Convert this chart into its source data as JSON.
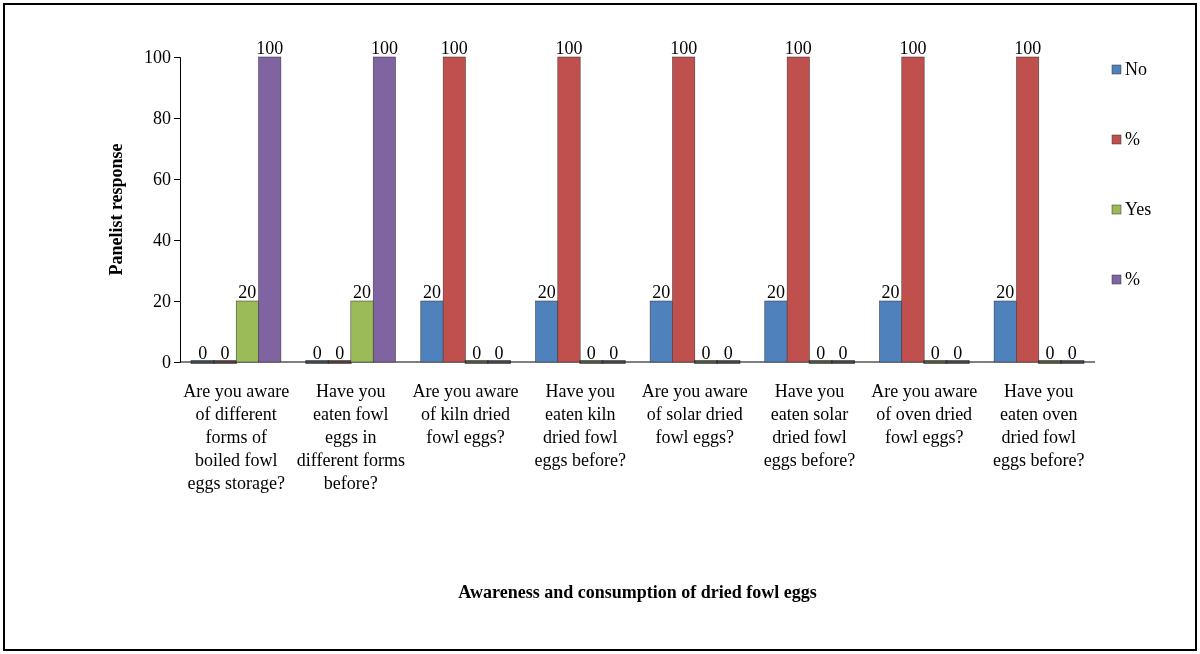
{
  "chart_data": {
    "type": "bar",
    "xlabel": "Awareness and consumption of dried fowl eggs",
    "ylabel": "Panelist response",
    "categories": [
      "Are you aware of different forms of boiled fowl eggs storage?",
      "Have you eaten fowl eggs in different forms before?",
      "Are you aware of kiln dried fowl eggs?",
      "Have you eaten kiln dried fowl eggs before?",
      "Are you aware of solar dried fowl eggs?",
      "Have you eaten solar dried fowl eggs before?",
      "Are you aware of oven dried fowl eggs?",
      "Have you eaten oven dried fowl eggs before?"
    ],
    "series": [
      {
        "name": "No",
        "color": "#4f81bd",
        "values": [
          0,
          0,
          20,
          20,
          20,
          20,
          20,
          20
        ]
      },
      {
        "name": "%",
        "color": "#c0504d",
        "values": [
          0,
          0,
          100,
          100,
          100,
          100,
          100,
          100
        ]
      },
      {
        "name": "Yes",
        "color": "#9bbb59",
        "values": [
          20,
          20,
          0,
          0,
          0,
          0,
          0,
          0
        ]
      },
      {
        "name": "%",
        "color": "#8064a2",
        "values": [
          100,
          100,
          0,
          0,
          0,
          0,
          0,
          0
        ]
      }
    ],
    "ylim": [
      0,
      100
    ],
    "yticks": [
      0,
      20,
      40,
      60,
      80,
      100
    ],
    "grid": false,
    "legend": "right",
    "data_labels": true
  }
}
